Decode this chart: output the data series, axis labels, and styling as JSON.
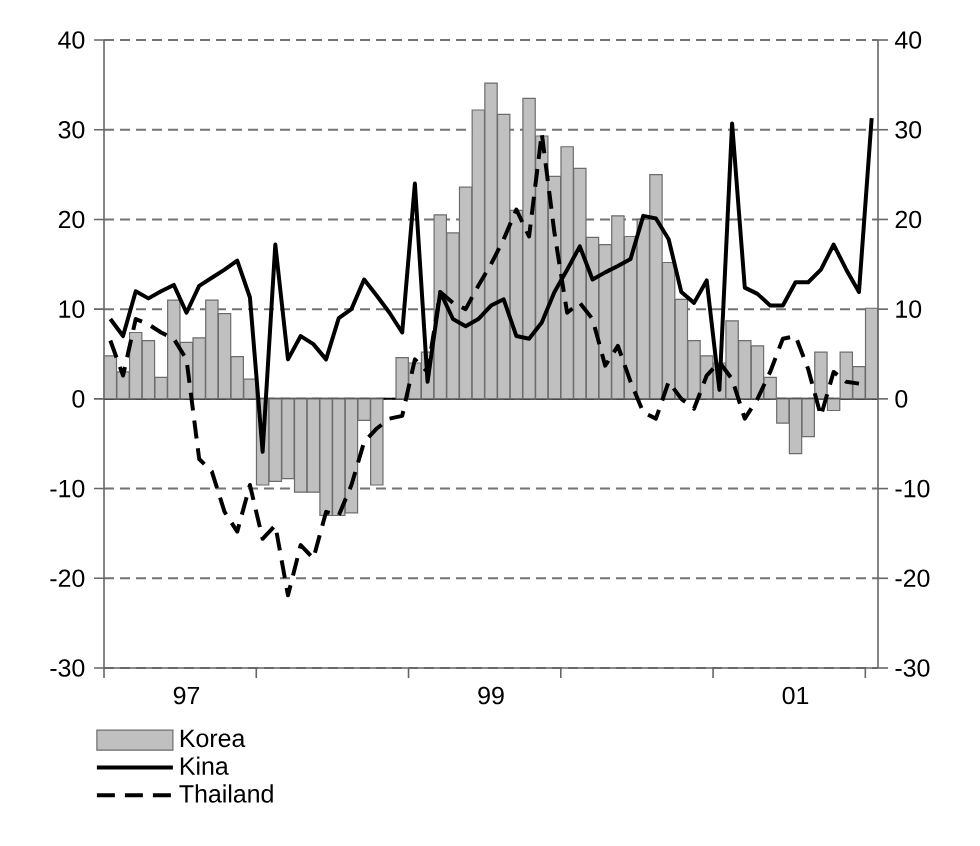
{
  "chart_data": {
    "type": "bar",
    "categories": [
      null,
      null,
      null,
      null,
      null,
      null,
      "97",
      null,
      null,
      null,
      null,
      null,
      null,
      null,
      null,
      null,
      null,
      null,
      null,
      null,
      null,
      null,
      null,
      null,
      null,
      null,
      null,
      null,
      null,
      null,
      "99",
      null,
      null,
      null,
      null,
      null,
      null,
      null,
      null,
      null,
      null,
      null,
      null,
      null,
      null,
      null,
      null,
      null,
      null,
      null,
      null,
      null,
      null,
      null,
      "01",
      null,
      null,
      null,
      null,
      null,
      null
    ],
    "series": [
      {
        "name": "Korea",
        "color": "#c0c0c0",
        "values": [
          4.8,
          3,
          7.4,
          6.5,
          2.4,
          11,
          6.3,
          6.8,
          11,
          9.5,
          4.7,
          2.2,
          -9.6,
          -9.2,
          -8.9,
          -10.4,
          -10.4,
          -13,
          -13,
          -12.7,
          -2.4,
          -9.6,
          null,
          4.6,
          4,
          5.2,
          20.5,
          18.5,
          23.6,
          32.2,
          35.2,
          31.7,
          21,
          33.5,
          29.3,
          24.8,
          28.1,
          25.7,
          18,
          17.2,
          20.4,
          18.1,
          20,
          25,
          15.2,
          11.1,
          6.5,
          4.8,
          4,
          8.7,
          6.5,
          5.9,
          2.4,
          -2.7,
          -6.1,
          -4.2,
          5.2,
          -1.3,
          5.2,
          3.6,
          10.1
        ]
      },
      {
        "name": "Kina",
        "type": "line",
        "color": "#000000",
        "line_style": "solid",
        "values": [
          8.9,
          7,
          12,
          11.2,
          12,
          12.7,
          9.6,
          12.6,
          13.5,
          14.4,
          15.4,
          11.3,
          -5.9,
          17.2,
          4.4,
          7,
          6.1,
          4.4,
          9,
          10,
          13.3,
          11.5,
          9.6,
          7.4,
          24,
          1.9,
          11.9,
          8.9,
          8.1,
          8.9,
          10.4,
          11.1,
          7,
          6.7,
          8.5,
          11.9,
          14.4,
          17,
          13.3,
          14.1,
          14.8,
          15.6,
          20.4,
          20.1,
          17.8,
          11.9,
          10.7,
          13.2,
          1,
          30.7,
          12.4,
          11.7,
          10.4,
          10.4,
          13,
          13,
          14.4,
          17.2,
          14.4,
          11.9,
          31.3
        ]
      },
      {
        "name": "Thailand",
        "type": "line",
        "color": "#000000",
        "line_style": "dashed",
        "values": [
          6.5,
          2.6,
          8.9,
          8.3,
          7.4,
          6.7,
          4.4,
          -6.7,
          -8.1,
          -12.6,
          -14.8,
          -9.6,
          -15.6,
          -14.1,
          -21.9,
          -16.3,
          -17.8,
          -12.6,
          -13,
          -9.6,
          -4.8,
          -3.3,
          -2.2,
          -1.9,
          4.4,
          3,
          11.9,
          10.7,
          10,
          12.6,
          15,
          17.8,
          21.1,
          18.1,
          29.6,
          18.5,
          9.6,
          10.7,
          8.9,
          3.7,
          5.9,
          1.9,
          -1.5,
          -2.2,
          1.9,
          0,
          -1.1,
          2.6,
          4.1,
          2.2,
          -2.2,
          0,
          3,
          6.7,
          7,
          3.3,
          -1.9,
          3,
          1.9,
          1.7,
          null
        ]
      }
    ],
    "ylim": [
      -30,
      40
    ],
    "yticks": [
      -30,
      -20,
      -10,
      0,
      10,
      20,
      30,
      40
    ],
    "y2lim": [
      -30,
      40
    ],
    "y2ticks": [
      -30,
      -20,
      -10,
      0,
      10,
      20,
      30,
      40
    ],
    "grid": "y",
    "legend": "bottom left",
    "marker": "none"
  }
}
